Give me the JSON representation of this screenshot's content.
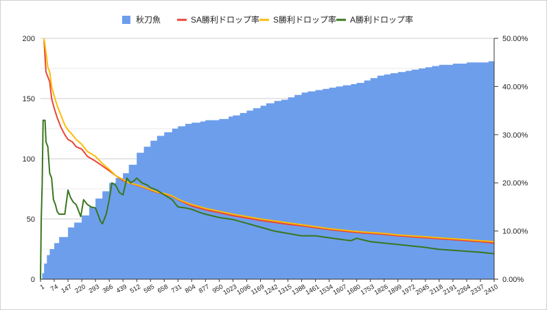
{
  "chart_data": {
    "type": "bar+line",
    "legend_position": "top-center",
    "grid": true,
    "x_ticks": [
      "1",
      "74",
      "147",
      "220",
      "293",
      "366",
      "439",
      "512",
      "585",
      "658",
      "731",
      "804",
      "877",
      "950",
      "1023",
      "1096",
      "1169",
      "1242",
      "1315",
      "1388",
      "1461",
      "1534",
      "1607",
      "1680",
      "1753",
      "1826",
      "1899",
      "1972",
      "2045",
      "2118",
      "2191",
      "2264",
      "2337",
      "2410"
    ],
    "x_range": [
      1,
      2410
    ],
    "y_left": {
      "range": [
        0,
        200
      ],
      "ticks": [
        "0",
        "50",
        "100",
        "150",
        "200"
      ]
    },
    "y_right": {
      "range": [
        0,
        0.5
      ],
      "ticks": [
        "0.00%",
        "10.00%",
        "20.00%",
        "30.00%",
        "40.00%",
        "50.00%"
      ]
    },
    "bar_series": {
      "name": "秋刀魚",
      "color": "#6d9eeb",
      "axis": "left",
      "points": [
        [
          1,
          0
        ],
        [
          10,
          5
        ],
        [
          20,
          13
        ],
        [
          35,
          20
        ],
        [
          50,
          25
        ],
        [
          74,
          30
        ],
        [
          100,
          35
        ],
        [
          147,
          43
        ],
        [
          180,
          47
        ],
        [
          220,
          53
        ],
        [
          260,
          60
        ],
        [
          293,
          67
        ],
        [
          330,
          73
        ],
        [
          366,
          80
        ],
        [
          400,
          84
        ],
        [
          439,
          88
        ],
        [
          470,
          95
        ],
        [
          512,
          105
        ],
        [
          550,
          110
        ],
        [
          585,
          115
        ],
        [
          620,
          119
        ],
        [
          658,
          122
        ],
        [
          700,
          125
        ],
        [
          731,
          127
        ],
        [
          770,
          129
        ],
        [
          804,
          130
        ],
        [
          850,
          131
        ],
        [
          877,
          132
        ],
        [
          950,
          133
        ],
        [
          1000,
          135
        ],
        [
          1023,
          136
        ],
        [
          1060,
          138
        ],
        [
          1096,
          140
        ],
        [
          1130,
          142
        ],
        [
          1169,
          144
        ],
        [
          1200,
          146
        ],
        [
          1242,
          148
        ],
        [
          1280,
          149
        ],
        [
          1315,
          151
        ],
        [
          1350,
          153
        ],
        [
          1388,
          155
        ],
        [
          1420,
          156
        ],
        [
          1461,
          157
        ],
        [
          1500,
          158
        ],
        [
          1534,
          159
        ],
        [
          1570,
          160
        ],
        [
          1607,
          161
        ],
        [
          1650,
          162
        ],
        [
          1680,
          163
        ],
        [
          1720,
          165
        ],
        [
          1753,
          167
        ],
        [
          1790,
          169
        ],
        [
          1826,
          170
        ],
        [
          1860,
          171
        ],
        [
          1899,
          172
        ],
        [
          1940,
          173
        ],
        [
          1972,
          174
        ],
        [
          2010,
          175
        ],
        [
          2045,
          176
        ],
        [
          2080,
          177
        ],
        [
          2118,
          178
        ],
        [
          2160,
          178
        ],
        [
          2191,
          179
        ],
        [
          2230,
          179
        ],
        [
          2264,
          180
        ],
        [
          2300,
          180
        ],
        [
          2337,
          180
        ],
        [
          2380,
          181
        ],
        [
          2410,
          181
        ]
      ]
    },
    "line_series": [
      {
        "name": "SA勝利ドロップ率",
        "color": "#ea4335",
        "axis": "right",
        "points": [
          [
            20,
            0.495
          ],
          [
            30,
            0.43
          ],
          [
            40,
            0.42
          ],
          [
            50,
            0.41
          ],
          [
            60,
            0.375
          ],
          [
            74,
            0.355
          ],
          [
            90,
            0.335
          ],
          [
            110,
            0.315
          ],
          [
            130,
            0.3
          ],
          [
            147,
            0.29
          ],
          [
            170,
            0.285
          ],
          [
            190,
            0.275
          ],
          [
            220,
            0.27
          ],
          [
            250,
            0.255
          ],
          [
            293,
            0.245
          ],
          [
            330,
            0.235
          ],
          [
            366,
            0.225
          ],
          [
            400,
            0.215
          ],
          [
            439,
            0.205
          ],
          [
            470,
            0.2
          ],
          [
            512,
            0.195
          ],
          [
            550,
            0.19
          ],
          [
            585,
            0.185
          ],
          [
            620,
            0.18
          ],
          [
            658,
            0.177
          ],
          [
            700,
            0.172
          ],
          [
            731,
            0.165
          ],
          [
            770,
            0.158
          ],
          [
            804,
            0.152
          ],
          [
            850,
            0.147
          ],
          [
            877,
            0.144
          ],
          [
            950,
            0.138
          ],
          [
            1023,
            0.132
          ],
          [
            1096,
            0.127
          ],
          [
            1169,
            0.122
          ],
          [
            1242,
            0.118
          ],
          [
            1315,
            0.114
          ],
          [
            1388,
            0.111
          ],
          [
            1461,
            0.107
          ],
          [
            1534,
            0.103
          ],
          [
            1607,
            0.1
          ],
          [
            1680,
            0.097
          ],
          [
            1753,
            0.095
          ],
          [
            1826,
            0.093
          ],
          [
            1899,
            0.09
          ],
          [
            1972,
            0.088
          ],
          [
            2045,
            0.086
          ],
          [
            2118,
            0.084
          ],
          [
            2191,
            0.082
          ],
          [
            2264,
            0.08
          ],
          [
            2337,
            0.078
          ],
          [
            2410,
            0.075
          ]
        ]
      },
      {
        "name": "S勝利ドロップ率",
        "color": "#fbbc04",
        "axis": "right",
        "points": [
          [
            20,
            0.5
          ],
          [
            30,
            0.47
          ],
          [
            40,
            0.44
          ],
          [
            50,
            0.43
          ],
          [
            60,
            0.4
          ],
          [
            74,
            0.38
          ],
          [
            90,
            0.36
          ],
          [
            110,
            0.34
          ],
          [
            130,
            0.32
          ],
          [
            147,
            0.31
          ],
          [
            170,
            0.3
          ],
          [
            190,
            0.29
          ],
          [
            220,
            0.28
          ],
          [
            250,
            0.265
          ],
          [
            293,
            0.255
          ],
          [
            330,
            0.24
          ],
          [
            366,
            0.228
          ],
          [
            400,
            0.215
          ],
          [
            439,
            0.207
          ],
          [
            470,
            0.2
          ],
          [
            512,
            0.196
          ],
          [
            550,
            0.191
          ],
          [
            585,
            0.186
          ],
          [
            620,
            0.181
          ],
          [
            658,
            0.178
          ],
          [
            700,
            0.173
          ],
          [
            731,
            0.166
          ],
          [
            770,
            0.16
          ],
          [
            804,
            0.155
          ],
          [
            850,
            0.15
          ],
          [
            877,
            0.147
          ],
          [
            950,
            0.141
          ],
          [
            1023,
            0.135
          ],
          [
            1096,
            0.13
          ],
          [
            1169,
            0.125
          ],
          [
            1242,
            0.121
          ],
          [
            1315,
            0.117
          ],
          [
            1388,
            0.113
          ],
          [
            1461,
            0.109
          ],
          [
            1534,
            0.105
          ],
          [
            1607,
            0.102
          ],
          [
            1680,
            0.099
          ],
          [
            1753,
            0.097
          ],
          [
            1826,
            0.095
          ],
          [
            1899,
            0.092
          ],
          [
            1972,
            0.09
          ],
          [
            2045,
            0.088
          ],
          [
            2118,
            0.086
          ],
          [
            2191,
            0.084
          ],
          [
            2264,
            0.082
          ],
          [
            2337,
            0.08
          ],
          [
            2410,
            0.078
          ]
        ]
      },
      {
        "name": "A勝利ドロップ率",
        "color": "#38761d",
        "axis": "right",
        "points": [
          [
            1,
            0
          ],
          [
            5,
            0.125
          ],
          [
            10,
            0.2
          ],
          [
            15,
            0.33
          ],
          [
            25,
            0.33
          ],
          [
            30,
            0.285
          ],
          [
            40,
            0.275
          ],
          [
            50,
            0.22
          ],
          [
            60,
            0.21
          ],
          [
            70,
            0.165
          ],
          [
            80,
            0.155
          ],
          [
            90,
            0.14
          ],
          [
            100,
            0.135
          ],
          [
            130,
            0.135
          ],
          [
            147,
            0.185
          ],
          [
            160,
            0.17
          ],
          [
            175,
            0.16
          ],
          [
            190,
            0.155
          ],
          [
            205,
            0.14
          ],
          [
            215,
            0.13
          ],
          [
            230,
            0.165
          ],
          [
            250,
            0.155
          ],
          [
            270,
            0.15
          ],
          [
            293,
            0.148
          ],
          [
            320,
            0.12
          ],
          [
            330,
            0.115
          ],
          [
            350,
            0.135
          ],
          [
            366,
            0.165
          ],
          [
            380,
            0.2
          ],
          [
            400,
            0.195
          ],
          [
            420,
            0.18
          ],
          [
            439,
            0.175
          ],
          [
            460,
            0.21
          ],
          [
            480,
            0.2
          ],
          [
            500,
            0.205
          ],
          [
            512,
            0.21
          ],
          [
            540,
            0.2
          ],
          [
            570,
            0.195
          ],
          [
            585,
            0.19
          ],
          [
            620,
            0.185
          ],
          [
            658,
            0.175
          ],
          [
            700,
            0.165
          ],
          [
            731,
            0.15
          ],
          [
            770,
            0.148
          ],
          [
            804,
            0.145
          ],
          [
            850,
            0.138
          ],
          [
            877,
            0.135
          ],
          [
            950,
            0.128
          ],
          [
            1023,
            0.124
          ],
          [
            1096,
            0.116
          ],
          [
            1169,
            0.108
          ],
          [
            1242,
            0.1
          ],
          [
            1315,
            0.095
          ],
          [
            1388,
            0.09
          ],
          [
            1461,
            0.09
          ],
          [
            1534,
            0.086
          ],
          [
            1607,
            0.082
          ],
          [
            1650,
            0.08
          ],
          [
            1680,
            0.085
          ],
          [
            1700,
            0.083
          ],
          [
            1753,
            0.078
          ],
          [
            1826,
            0.075
          ],
          [
            1899,
            0.072
          ],
          [
            1972,
            0.069
          ],
          [
            2045,
            0.066
          ],
          [
            2118,
            0.062
          ],
          [
            2191,
            0.06
          ],
          [
            2264,
            0.058
          ],
          [
            2337,
            0.056
          ],
          [
            2410,
            0.053
          ]
        ]
      }
    ]
  }
}
